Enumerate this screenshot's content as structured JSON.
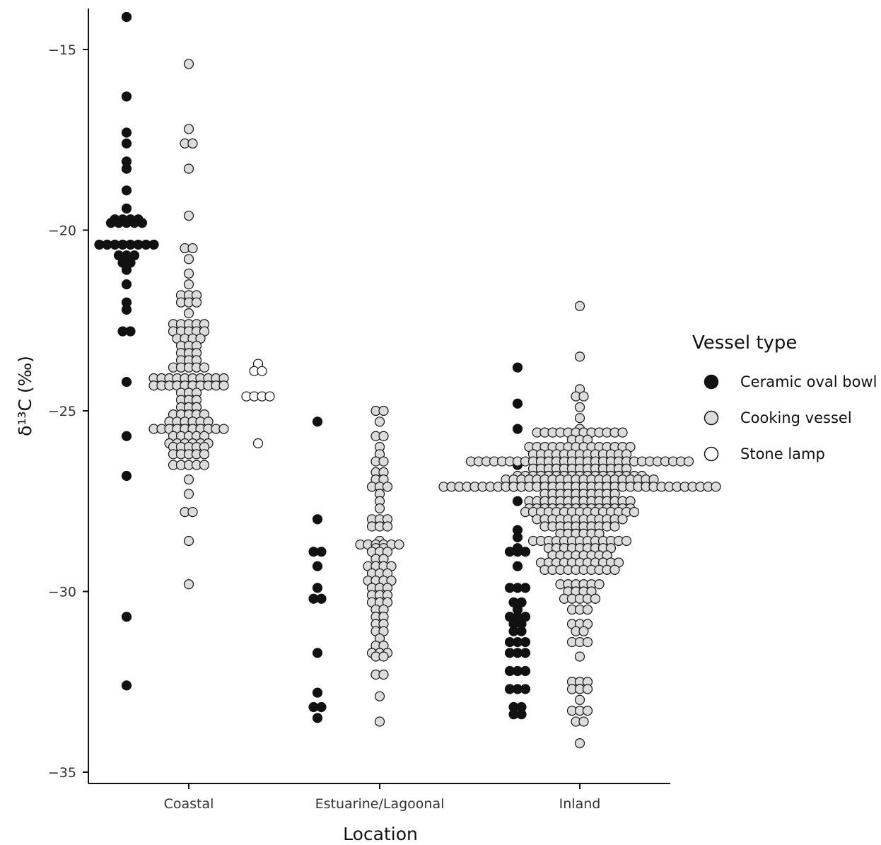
{
  "chart_data": {
    "type": "scatter",
    "subtype": "beeswarm",
    "xlabel": "Location",
    "ylabel": "δ¹³C (‰)",
    "ylim": [
      -35.4,
      -13.8
    ],
    "y_ticks": [
      -15,
      -20,
      -25,
      -30,
      -35
    ],
    "y_tick_labels": [
      "−15",
      "−20",
      "−25",
      "−30",
      "−35"
    ],
    "categories": [
      "Coastal",
      "Estuarine/Lagoonal",
      "Inland"
    ],
    "legend": {
      "title": "Vessel type",
      "position": "right",
      "entries": [
        {
          "label": "Ceramic oval bowl",
          "color": "#111111"
        },
        {
          "label": "Cooking vessel",
          "color": "#dcdcdc"
        },
        {
          "label": "Stone lamp",
          "color": "#ffffff"
        }
      ]
    },
    "series": [
      {
        "name": "Ceramic oval bowl",
        "color": "#111111",
        "values_by_category": [
          [
            -14.1,
            -16.3,
            -17.3,
            -17.6,
            -18.1,
            -18.3,
            -18.9,
            -19.4,
            -19.7,
            -19.7,
            -19.7,
            -19.7,
            -19.8,
            -19.8,
            -19.8,
            -19.8,
            -19.8,
            -20.4,
            -20.4,
            -20.4,
            -20.4,
            -20.4,
            -20.4,
            -20.4,
            -20.4,
            -20.7,
            -20.7,
            -20.7,
            -20.9,
            -20.9,
            -21.1,
            -21.5,
            -22.0,
            -22.2,
            -22.8,
            -22.8,
            -24.2,
            -25.7,
            -26.8,
            -30.7,
            -32.6
          ],
          [
            -25.3,
            -28.0,
            -28.9,
            -28.9,
            -29.3,
            -29.9,
            -30.2,
            -30.2,
            -31.7,
            -32.8,
            -33.2,
            -33.2,
            -33.5
          ],
          [
            -23.8,
            -24.8,
            -25.5,
            -26.5,
            -27.1,
            -27.1,
            -27.5,
            -28.3,
            -28.5,
            -28.8,
            -28.9,
            -28.9,
            -28.9,
            -29.3,
            -29.9,
            -29.9,
            -29.9,
            -30.3,
            -30.3,
            -30.5,
            -30.7,
            -30.7,
            -30.7,
            -30.9,
            -30.9,
            -31.1,
            -31.1,
            -31.4,
            -31.4,
            -31.4,
            -31.7,
            -31.7,
            -31.7,
            -32.2,
            -32.2,
            -32.2,
            -32.7,
            -32.7,
            -32.7,
            -33.2,
            -33.2,
            -33.4,
            -33.4
          ]
        ]
      },
      {
        "name": "Cooking vessel",
        "color": "#dcdcdc",
        "values_by_category": [
          [
            -15.4,
            -17.2,
            -17.6,
            -17.6,
            -18.3,
            -19.6,
            -20.5,
            -20.5,
            -20.8,
            -21.2,
            -21.5,
            -21.8,
            -21.8,
            -21.8,
            -22.0,
            -22.0,
            -22.0,
            -22.3,
            -22.6,
            -22.6,
            -22.6,
            -22.6,
            -22.6,
            -22.8,
            -22.8,
            -22.8,
            -22.8,
            -22.8,
            -23.0,
            -23.0,
            -23.0,
            -23.0,
            -23.2,
            -23.2,
            -23.2,
            -23.4,
            -23.4,
            -23.4,
            -23.6,
            -23.6,
            -23.6,
            -23.8,
            -23.8,
            -23.8,
            -23.8,
            -23.8,
            -24.1,
            -24.1,
            -24.1,
            -24.1,
            -24.1,
            -24.1,
            -24.1,
            -24.1,
            -24.1,
            -24.1,
            -24.3,
            -24.3,
            -24.3,
            -24.3,
            -24.3,
            -24.3,
            -24.3,
            -24.3,
            -24.3,
            -24.3,
            -24.5,
            -24.5,
            -24.5,
            -24.7,
            -24.7,
            -24.7,
            -24.9,
            -24.9,
            -24.9,
            -25.1,
            -25.1,
            -25.1,
            -25.1,
            -25.1,
            -25.3,
            -25.3,
            -25.3,
            -25.3,
            -25.3,
            -25.3,
            -25.5,
            -25.5,
            -25.5,
            -25.5,
            -25.5,
            -25.5,
            -25.5,
            -25.5,
            -25.5,
            -25.5,
            -25.7,
            -25.7,
            -25.7,
            -25.7,
            -25.7,
            -25.9,
            -25.9,
            -25.9,
            -25.9,
            -25.9,
            -25.9,
            -26.0,
            -26.0,
            -26.0,
            -26.0,
            -26.0,
            -26.2,
            -26.2,
            -26.2,
            -26.2,
            -26.2,
            -26.5,
            -26.5,
            -26.5,
            -26.5,
            -26.5,
            -26.9,
            -27.3,
            -27.8,
            -27.8,
            -28.6,
            -29.8
          ],
          [
            -25.0,
            -25.0,
            -25.3,
            -25.7,
            -25.7,
            -26.0,
            -26.2,
            -26.4,
            -26.4,
            -26.7,
            -26.7,
            -26.9,
            -26.9,
            -27.1,
            -27.1,
            -27.1,
            -27.3,
            -27.5,
            -27.7,
            -28.0,
            -28.0,
            -28.0,
            -28.2,
            -28.2,
            -28.2,
            -28.6,
            -28.7,
            -28.7,
            -28.7,
            -28.7,
            -28.7,
            -28.7,
            -28.8,
            -28.8,
            -28.9,
            -28.9,
            -28.9,
            -29.1,
            -29.1,
            -29.3,
            -29.3,
            -29.3,
            -29.3,
            -29.5,
            -29.5,
            -29.5,
            -29.7,
            -29.7,
            -29.7,
            -29.7,
            -29.9,
            -29.9,
            -29.9,
            -30.1,
            -30.1,
            -30.1,
            -30.3,
            -30.3,
            -30.3,
            -30.5,
            -30.5,
            -30.7,
            -30.7,
            -30.9,
            -30.9,
            -31.1,
            -31.1,
            -31.3,
            -31.5,
            -31.5,
            -31.7,
            -31.7,
            -31.7,
            -31.8,
            -31.8,
            -32.3,
            -32.3,
            -32.9,
            -33.6
          ],
          [
            -22.1,
            -23.5,
            -24.4,
            -24.6,
            -24.6,
            -24.9,
            -25.2,
            -25.5,
            -25.6,
            -25.6,
            -25.6,
            -25.6,
            -25.6,
            -25.6,
            -25.6,
            -25.6,
            -25.6,
            -25.6,
            -25.6,
            -25.6,
            -25.8,
            -25.8,
            -25.8,
            -26.0,
            -26.0,
            -26.0,
            -26.0,
            -26.0,
            -26.0,
            -26.0,
            -26.0,
            -26.0,
            -26.0,
            -26.0,
            -26.0,
            -26.0,
            -26.0,
            -26.2,
            -26.2,
            -26.2,
            -26.2,
            -26.2,
            -26.2,
            -26.2,
            -26.2,
            -26.2,
            -26.2,
            -26.2,
            -26.2,
            -26.2,
            -26.4,
            -26.4,
            -26.4,
            -26.4,
            -26.4,
            -26.4,
            -26.4,
            -26.4,
            -26.4,
            -26.4,
            -26.4,
            -26.4,
            -26.4,
            -26.4,
            -26.4,
            -26.4,
            -26.4,
            -26.4,
            -26.4,
            -26.4,
            -26.4,
            -26.4,
            -26.4,
            -26.4,
            -26.4,
            -26.4,
            -26.4,
            -26.4,
            -26.4,
            -26.6,
            -26.6,
            -26.6,
            -26.6,
            -26.6,
            -26.6,
            -26.6,
            -26.6,
            -26.6,
            -26.6,
            -26.6,
            -26.6,
            -26.6,
            -26.8,
            -26.8,
            -26.8,
            -26.8,
            -26.8,
            -26.8,
            -26.8,
            -26.8,
            -26.8,
            -26.8,
            -26.8,
            -26.8,
            -26.8,
            -26.8,
            -26.8,
            -26.8,
            -26.8,
            -26.9,
            -26.9,
            -26.9,
            -26.9,
            -26.9,
            -26.9,
            -26.9,
            -26.9,
            -26.9,
            -26.9,
            -26.9,
            -26.9,
            -26.9,
            -26.9,
            -26.9,
            -26.9,
            -26.9,
            -26.9,
            -26.9,
            -26.9,
            -27.1,
            -27.1,
            -27.1,
            -27.1,
            -27.1,
            -27.1,
            -27.1,
            -27.1,
            -27.1,
            -27.1,
            -27.1,
            -27.1,
            -27.1,
            -27.1,
            -27.1,
            -27.1,
            -27.1,
            -27.1,
            -27.1,
            -27.1,
            -27.1,
            -27.1,
            -27.1,
            -27.1,
            -27.1,
            -27.1,
            -27.1,
            -27.1,
            -27.1,
            -27.1,
            -27.1,
            -27.1,
            -27.1,
            -27.1,
            -27.1,
            -27.1,
            -27.3,
            -27.3,
            -27.3,
            -27.3,
            -27.3,
            -27.3,
            -27.3,
            -27.3,
            -27.3,
            -27.3,
            -27.5,
            -27.5,
            -27.5,
            -27.5,
            -27.5,
            -27.5,
            -27.5,
            -27.5,
            -27.5,
            -27.5,
            -27.5,
            -27.5,
            -27.5,
            -27.5,
            -27.7,
            -27.7,
            -27.7,
            -27.7,
            -27.7,
            -27.7,
            -27.7,
            -27.7,
            -27.7,
            -27.7,
            -27.7,
            -27.7,
            -27.7,
            -27.7,
            -27.8,
            -27.8,
            -27.8,
            -27.8,
            -27.8,
            -27.8,
            -27.8,
            -27.8,
            -27.8,
            -27.8,
            -27.8,
            -27.8,
            -27.8,
            -27.8,
            -27.8,
            -28.0,
            -28.0,
            -28.0,
            -28.0,
            -28.0,
            -28.0,
            -28.0,
            -28.0,
            -28.0,
            -28.0,
            -28.0,
            -28.0,
            -28.2,
            -28.2,
            -28.2,
            -28.2,
            -28.2,
            -28.2,
            -28.2,
            -28.2,
            -28.2,
            -28.2,
            -28.4,
            -28.4,
            -28.4,
            -28.4,
            -28.4,
            -28.4,
            -28.6,
            -28.6,
            -28.6,
            -28.6,
            -28.6,
            -28.6,
            -28.6,
            -28.6,
            -28.6,
            -28.6,
            -28.6,
            -28.6,
            -28.6,
            -28.8,
            -28.8,
            -28.8,
            -28.8,
            -28.8,
            -28.8,
            -28.8,
            -28.8,
            -28.8,
            -29.0,
            -29.0,
            -29.0,
            -29.0,
            -29.0,
            -29.0,
            -29.0,
            -29.0,
            -29.2,
            -29.2,
            -29.2,
            -29.2,
            -29.2,
            -29.2,
            -29.2,
            -29.2,
            -29.2,
            -29.2,
            -29.2,
            -29.4,
            -29.4,
            -29.4,
            -29.4,
            -29.4,
            -29.4,
            -29.4,
            -29.4,
            -29.4,
            -29.4,
            -29.8,
            -29.8,
            -29.8,
            -29.8,
            -29.8,
            -29.8,
            -30.0,
            -30.0,
            -30.0,
            -30.0,
            -30.2,
            -30.2,
            -30.2,
            -30.2,
            -30.2,
            -30.5,
            -30.5,
            -30.5,
            -30.9,
            -30.9,
            -30.9,
            -31.1,
            -31.1,
            -31.4,
            -31.4,
            -31.4,
            -31.8,
            -32.5,
            -32.5,
            -32.5,
            -32.7,
            -32.7,
            -32.7,
            -33.0,
            -33.3,
            -33.3,
            -33.3,
            -33.6,
            -33.6,
            -34.2
          ]
        ]
      },
      {
        "name": "Stone lamp",
        "color": "#ffffff",
        "values_by_category": [
          [
            -23.7,
            -23.9,
            -23.9,
            -24.6,
            -24.6,
            -24.6,
            -24.6,
            -25.9
          ],
          [],
          []
        ]
      }
    ]
  }
}
